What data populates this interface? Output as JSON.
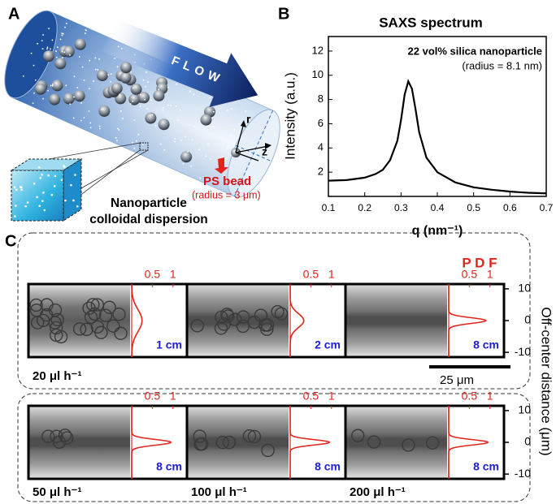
{
  "panels": {
    "a": "A",
    "b": "B",
    "c": "C"
  },
  "panel_a": {
    "flow": "FLOW",
    "axis_r": "r",
    "axis_z": "z",
    "bead_label": "PS bead",
    "bead_radius": "(radius = 3 μm)",
    "dispersion_1": "Nanoparticle",
    "dispersion_2": "colloidal dispersion"
  },
  "chart_data": {
    "type": "line",
    "title": "SAXS spectrum",
    "annotation": "22 vol% silica nanoparticle",
    "annotation_2": "(radius = 8.1 nm)",
    "x_label": "q (nm⁻¹)",
    "y_label": "Intensity (a.u.)",
    "x": [
      0.1,
      0.15,
      0.2,
      0.23,
      0.25,
      0.27,
      0.29,
      0.3,
      0.31,
      0.32,
      0.33,
      0.34,
      0.35,
      0.37,
      0.4,
      0.45,
      0.5,
      0.55,
      0.6,
      0.65,
      0.7
    ],
    "series": [
      {
        "name": "SAXS",
        "color": "#000000",
        "values": [
          1.3,
          1.35,
          1.55,
          1.85,
          2.2,
          3.0,
          4.6,
          6.3,
          8.4,
          9.5,
          8.9,
          7.2,
          5.3,
          3.2,
          2.0,
          1.15,
          0.75,
          0.55,
          0.4,
          0.3,
          0.25
        ]
      }
    ],
    "xlim": [
      0.1,
      0.7
    ],
    "xticks": [
      0.1,
      0.2,
      0.3,
      0.4,
      0.5,
      0.6,
      0.7
    ],
    "ylim": [
      0,
      13.2
    ],
    "yticks": [
      2,
      4,
      6,
      8,
      10,
      12
    ]
  },
  "panel_c": {
    "pdf_label": "P D F",
    "pdf_ticks": [
      0.5,
      1
    ],
    "pdf_xlim": [
      0,
      1.3
    ],
    "y_label": "Off-center distance (μm)",
    "y_ticks": [
      10,
      0,
      -10
    ],
    "ylim": [
      -11.5,
      11.5
    ],
    "scale_bar": "25 μm",
    "top_row": {
      "flow_rate": "20 μl h⁻¹",
      "panels": [
        {
          "distance": "1 cm",
          "pdf_peak": 0.25,
          "pdf_sd": 3.5
        },
        {
          "distance": "2 cm",
          "pdf_peak": 0.33,
          "pdf_sd": 2.2
        },
        {
          "distance": "8 cm",
          "pdf_peak": 0.9,
          "pdf_sd": 0.9
        }
      ]
    },
    "bottom_row": {
      "panels": [
        {
          "flow_rate": "50 μl h⁻¹",
          "distance": "8 cm",
          "pdf_peak": 0.95,
          "pdf_sd": 0.9
        },
        {
          "flow_rate": "100 μl h⁻¹",
          "distance": "8 cm",
          "pdf_peak": 0.95,
          "pdf_sd": 0.85
        },
        {
          "flow_rate": "200 μl h⁻¹",
          "distance": "8 cm",
          "pdf_peak": 0.95,
          "pdf_sd": 0.85
        }
      ]
    }
  }
}
